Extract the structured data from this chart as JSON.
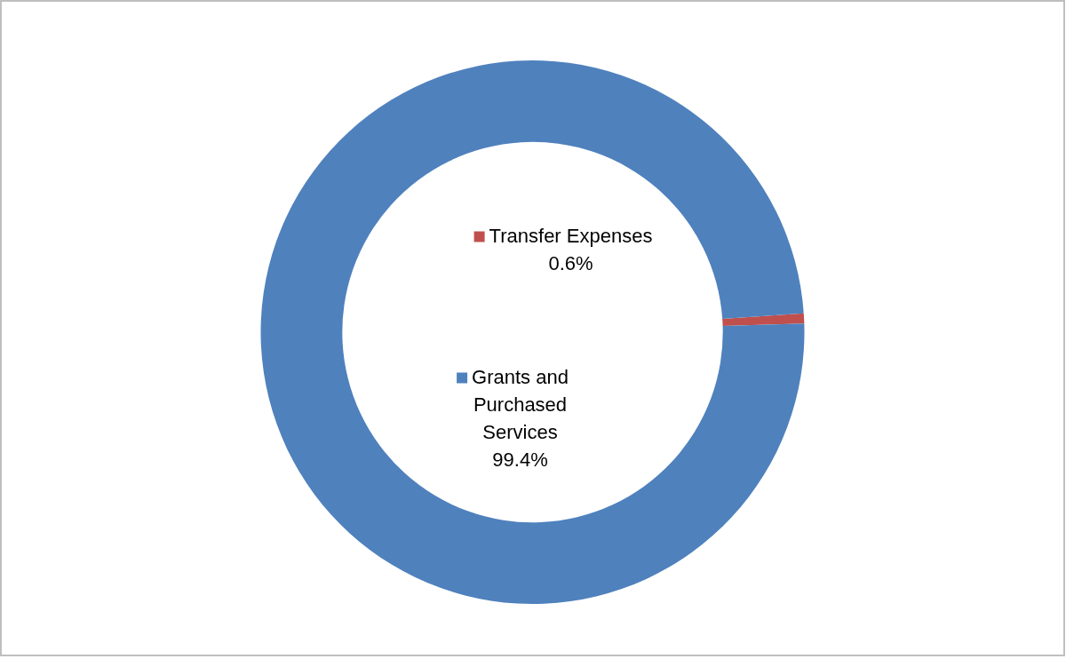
{
  "chart_data": {
    "type": "donut",
    "categories": [
      "Transfer Expenses",
      "Grants and Purchased Services"
    ],
    "values": [
      0.6,
      99.4
    ],
    "colors": [
      "#c0504d",
      "#4f81bd"
    ],
    "legend": "center",
    "value_labels": [
      "0.6%",
      "99.4%"
    ]
  }
}
